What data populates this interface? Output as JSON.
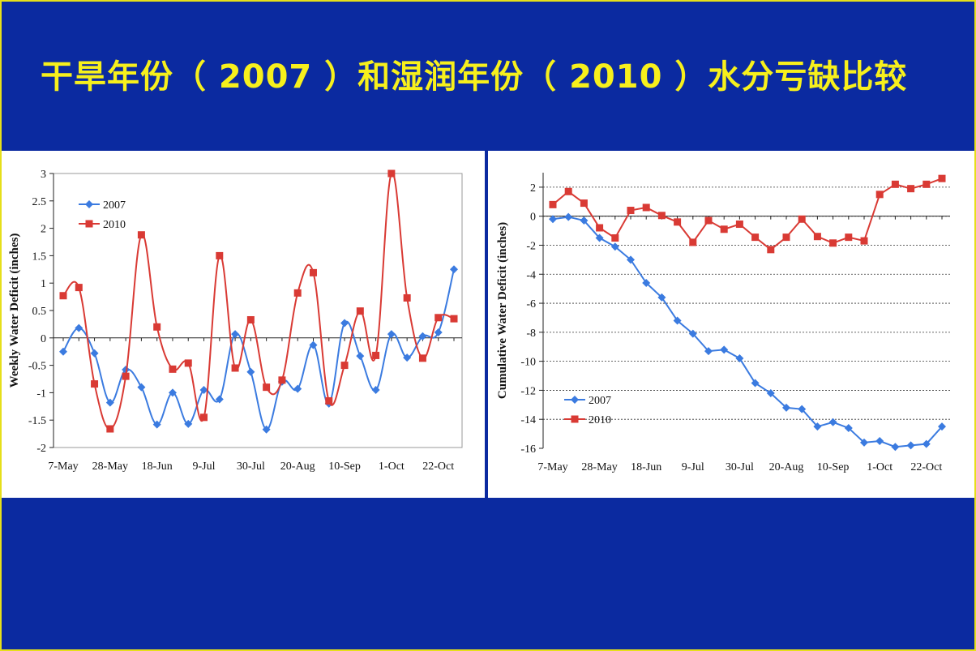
{
  "slide": {
    "title": "干旱年份（ 2007 ）和湿润年份（ 2010 ）水分亏缺比较"
  },
  "colors": {
    "background": "#0b2aa0",
    "border": "#e6df1a",
    "title": "#f7f01c",
    "series_2007": "#3b7be0",
    "series_2010": "#d93a34"
  },
  "chart_data": [
    {
      "type": "line",
      "ylabel": "Weekly Water Deficit (inches)",
      "ylim": [
        -2,
        3
      ],
      "yticks": [
        -2,
        -1.5,
        -1,
        -0.5,
        0,
        0.5,
        1,
        1.5,
        2,
        2.5,
        3
      ],
      "xtick_labels": [
        "7-May",
        "28-May",
        "18-Jun",
        "9-Jul",
        "30-Jul",
        "20-Aug",
        "10-Sep",
        "1-Oct",
        "22-Oct"
      ],
      "legend": "top-left",
      "grid": false,
      "series": [
        {
          "name": "2007",
          "values": [
            -0.25,
            0.18,
            -0.28,
            -1.18,
            -0.58,
            -0.9,
            -1.58,
            -1.0,
            -1.57,
            -0.95,
            -1.12,
            0.07,
            -0.62,
            -1.67,
            -0.8,
            -0.93,
            -0.13,
            -1.2,
            0.27,
            -0.33,
            -0.95,
            0.07,
            -0.36,
            0.03,
            0.1,
            1.25
          ]
        },
        {
          "name": "2010",
          "values": [
            0.77,
            0.92,
            -0.84,
            -1.66,
            -0.7,
            1.88,
            0.2,
            -0.57,
            -0.46,
            -1.45,
            1.5,
            -0.55,
            0.33,
            -0.9,
            -0.77,
            0.82,
            1.19,
            -1.15,
            -0.5,
            0.49,
            -0.32,
            3.0,
            0.73,
            -0.37,
            0.37,
            0.35
          ]
        }
      ]
    },
    {
      "type": "line",
      "ylabel": "Cumulative Water Deficit (inches)",
      "ylim": [
        -16,
        3
      ],
      "yticks": [
        -16,
        -14,
        -12,
        -10,
        -8,
        -6,
        -4,
        -2,
        0,
        2
      ],
      "xtick_labels": [
        "7-May",
        "28-May",
        "18-Jun",
        "9-Jul",
        "30-Jul",
        "20-Aug",
        "10-Sep",
        "1-Oct",
        "22-Oct"
      ],
      "legend": "bottom-left",
      "grid": true,
      "series": [
        {
          "name": "2007",
          "values": [
            -0.2,
            -0.05,
            -0.3,
            -1.5,
            -2.1,
            -3.0,
            -4.6,
            -5.6,
            -7.2,
            -8.1,
            -9.3,
            -9.2,
            -9.8,
            -11.5,
            -12.2,
            -13.2,
            -13.3,
            -14.5,
            -14.2,
            -14.6,
            -15.6,
            -15.5,
            -15.9,
            -15.8,
            -15.7,
            -14.5
          ]
        },
        {
          "name": "2010",
          "values": [
            0.8,
            1.7,
            0.9,
            -0.8,
            -1.5,
            0.4,
            0.6,
            0.05,
            -0.4,
            -1.8,
            -0.3,
            -0.9,
            -0.55,
            -1.45,
            -2.3,
            -1.45,
            -0.2,
            -1.4,
            -1.85,
            -1.45,
            -1.7,
            1.5,
            2.2,
            1.9,
            2.2,
            2.6
          ]
        }
      ]
    }
  ]
}
